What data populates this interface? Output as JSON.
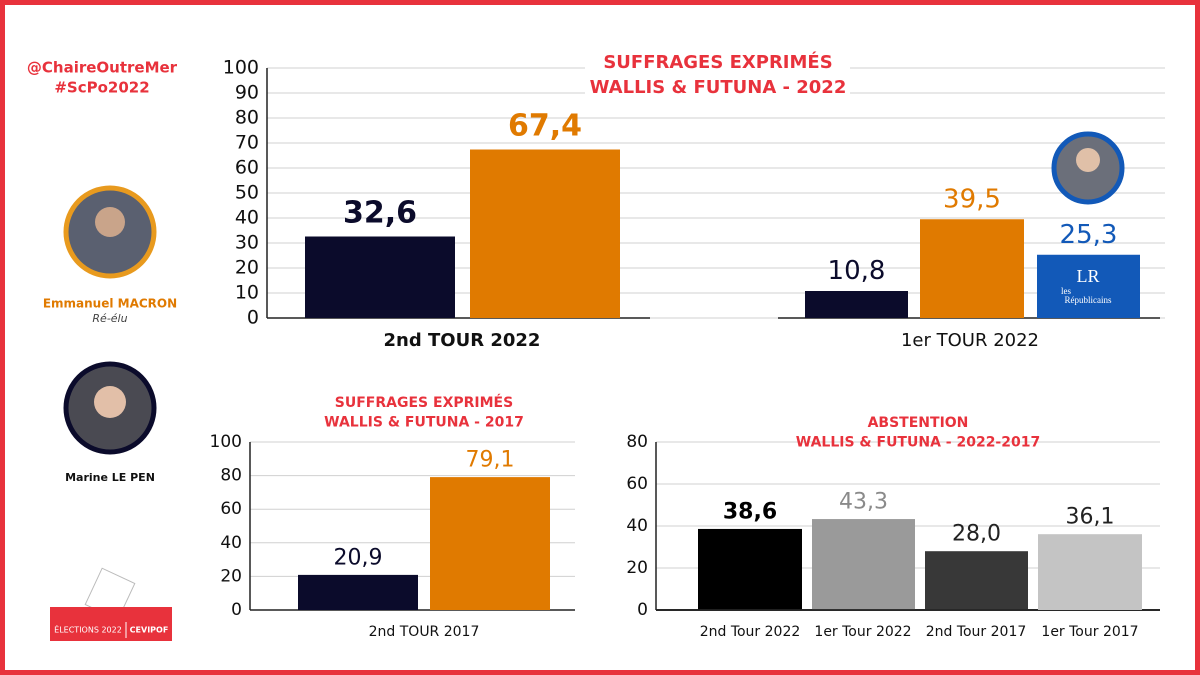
{
  "sidebar": {
    "handle": "@ChaireOutreMer",
    "hashtag": "#ScPo2022",
    "candidates": [
      {
        "name": "Emmanuel MACRON",
        "note": "Ré-élu"
      },
      {
        "name": "Marine LE PEN"
      }
    ],
    "logo": [
      "ÉLECTIONS 2022",
      "CEVIPOF"
    ]
  },
  "party_logo": {
    "mark": "LR",
    "text": [
      "les",
      "Républicains"
    ]
  },
  "chart_data": [
    {
      "type": "bar",
      "title": "SUFFRAGES EXPRIMÉS",
      "subtitle": "WALLIS & FUTUNA - 2022",
      "ylim": [
        0,
        100
      ],
      "yticks": [
        0,
        10,
        20,
        30,
        40,
        50,
        60,
        70,
        80,
        90,
        100
      ],
      "grid": true,
      "groups": [
        {
          "name": "2nd TOUR 2022",
          "values": [
            32.6,
            67.4
          ],
          "value_labels": [
            "32,6",
            "67,4"
          ],
          "colors": [
            "#0b0b2b",
            "#e07a00"
          ],
          "label_colors": [
            "#0b0b2b",
            "#e07a00"
          ]
        },
        {
          "name": "1er TOUR 2022",
          "values": [
            10.8,
            39.5,
            25.3
          ],
          "value_labels": [
            "10,8",
            "39,5",
            "25,3"
          ],
          "colors": [
            "#0b0b2b",
            "#e07a00",
            "#1259b8"
          ],
          "label_colors": [
            "#0b0b2b",
            "#e07a00",
            "#1259b8"
          ]
        }
      ]
    },
    {
      "type": "bar",
      "title": "SUFFRAGES EXPRIMÉS",
      "subtitle": "WALLIS & FUTUNA - 2017",
      "ylim": [
        0,
        100
      ],
      "yticks": [
        0,
        20,
        40,
        60,
        80,
        100
      ],
      "grid": true,
      "groups": [
        {
          "name": "2nd TOUR 2017",
          "values": [
            20.9,
            79.1
          ],
          "value_labels": [
            "20,9",
            "79,1"
          ],
          "colors": [
            "#0b0b2b",
            "#e07a00"
          ],
          "label_colors": [
            "#0b0b2b",
            "#e07a00"
          ]
        }
      ]
    },
    {
      "type": "bar",
      "title": "ABSTENTION",
      "subtitle": "WALLIS & FUTUNA - 2022-2017",
      "ylim": [
        0,
        80
      ],
      "yticks": [
        0,
        20,
        40,
        60,
        80
      ],
      "grid": true,
      "groups": [
        {
          "name": "2nd Tour 2022",
          "values": [
            38.6
          ],
          "value_labels": [
            "38,6"
          ],
          "colors": [
            "#000000"
          ],
          "label_colors": [
            "#000000"
          ]
        },
        {
          "name": "1er Tour 2022",
          "values": [
            43.3
          ],
          "value_labels": [
            "43,3"
          ],
          "colors": [
            "#9a9a9a"
          ],
          "label_colors": [
            "#8a8a8a"
          ]
        },
        {
          "name": "2nd Tour 2017",
          "values": [
            28.0
          ],
          "value_labels": [
            "28,0"
          ],
          "colors": [
            "#383838"
          ],
          "label_colors": [
            "#222222"
          ]
        },
        {
          "name": "1er Tour 2017",
          "values": [
            36.1
          ],
          "value_labels": [
            "36,1"
          ],
          "colors": [
            "#c4c4c4"
          ],
          "label_colors": [
            "#222222"
          ]
        }
      ]
    }
  ]
}
